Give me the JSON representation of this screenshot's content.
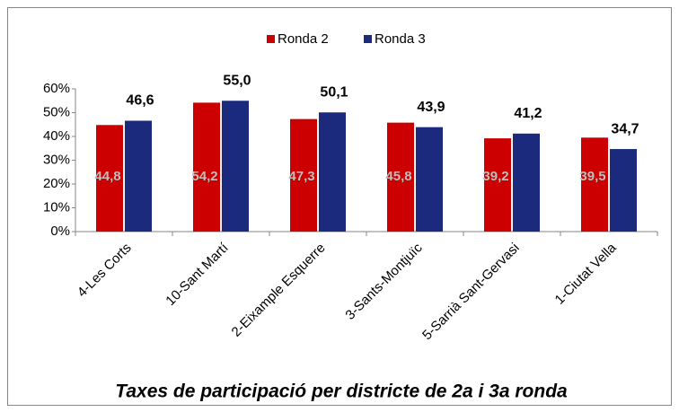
{
  "chart_data": {
    "type": "bar",
    "title": "Taxes de participació per districte de 2a i 3a ronda",
    "categories": [
      "4-Les Corts",
      "10-Sant Martí",
      "2-Eixample Esquerre",
      "3-Sants-Montjuïc",
      "5-Sarrià Sant-Gervasi",
      "1-Ciutat Vella"
    ],
    "series": [
      {
        "name": "Ronda 2",
        "color": "#cc0000",
        "values": [
          44.8,
          54.2,
          47.3,
          45.8,
          39.2,
          39.5
        ],
        "value_labels": [
          "44,8",
          "54,2",
          "47,3",
          "45,8",
          "39,2",
          "39,5"
        ]
      },
      {
        "name": "Ronda 3",
        "color": "#1c2a7e",
        "values": [
          46.6,
          55.0,
          50.1,
          43.9,
          41.2,
          34.7
        ],
        "value_labels": [
          "46,6",
          "55,0",
          "50,1",
          "43,9",
          "41,2",
          "34,7"
        ]
      }
    ],
    "ylim": [
      0,
      60
    ],
    "yticks": [
      {
        "value": 0,
        "label": "0%"
      },
      {
        "value": 10,
        "label": "10%"
      },
      {
        "value": 20,
        "label": "20%"
      },
      {
        "value": 30,
        "label": "30%"
      },
      {
        "value": 40,
        "label": "40%"
      },
      {
        "value": 50,
        "label": "50%"
      },
      {
        "value": 60,
        "label": "60%"
      }
    ],
    "grid": false,
    "legend": "top"
  }
}
